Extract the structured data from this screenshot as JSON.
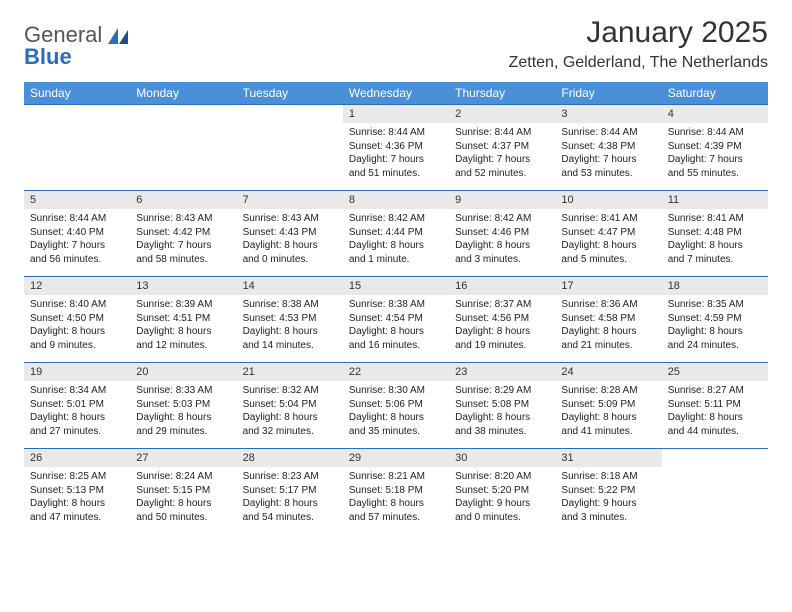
{
  "brand": {
    "line1": "General",
    "line2": "Blue",
    "logo_color": "#2a6fb5"
  },
  "title": "January 2025",
  "location": "Zetten, Gelderland, The Netherlands",
  "colors": {
    "header_bg": "#4a90d9",
    "header_text": "#ffffff",
    "daynum_bg": "#e9e9e9",
    "rule": "#2a6fb5",
    "text": "#222222"
  },
  "day_names": [
    "Sunday",
    "Monday",
    "Tuesday",
    "Wednesday",
    "Thursday",
    "Friday",
    "Saturday"
  ],
  "weeks": [
    [
      null,
      null,
      null,
      {
        "n": "1",
        "sunrise": "8:44 AM",
        "sunset": "4:36 PM",
        "dl1": "Daylight: 7 hours",
        "dl2": "and 51 minutes."
      },
      {
        "n": "2",
        "sunrise": "8:44 AM",
        "sunset": "4:37 PM",
        "dl1": "Daylight: 7 hours",
        "dl2": "and 52 minutes."
      },
      {
        "n": "3",
        "sunrise": "8:44 AM",
        "sunset": "4:38 PM",
        "dl1": "Daylight: 7 hours",
        "dl2": "and 53 minutes."
      },
      {
        "n": "4",
        "sunrise": "8:44 AM",
        "sunset": "4:39 PM",
        "dl1": "Daylight: 7 hours",
        "dl2": "and 55 minutes."
      }
    ],
    [
      {
        "n": "5",
        "sunrise": "8:44 AM",
        "sunset": "4:40 PM",
        "dl1": "Daylight: 7 hours",
        "dl2": "and 56 minutes."
      },
      {
        "n": "6",
        "sunrise": "8:43 AM",
        "sunset": "4:42 PM",
        "dl1": "Daylight: 7 hours",
        "dl2": "and 58 minutes."
      },
      {
        "n": "7",
        "sunrise": "8:43 AM",
        "sunset": "4:43 PM",
        "dl1": "Daylight: 8 hours",
        "dl2": "and 0 minutes."
      },
      {
        "n": "8",
        "sunrise": "8:42 AM",
        "sunset": "4:44 PM",
        "dl1": "Daylight: 8 hours",
        "dl2": "and 1 minute."
      },
      {
        "n": "9",
        "sunrise": "8:42 AM",
        "sunset": "4:46 PM",
        "dl1": "Daylight: 8 hours",
        "dl2": "and 3 minutes."
      },
      {
        "n": "10",
        "sunrise": "8:41 AM",
        "sunset": "4:47 PM",
        "dl1": "Daylight: 8 hours",
        "dl2": "and 5 minutes."
      },
      {
        "n": "11",
        "sunrise": "8:41 AM",
        "sunset": "4:48 PM",
        "dl1": "Daylight: 8 hours",
        "dl2": "and 7 minutes."
      }
    ],
    [
      {
        "n": "12",
        "sunrise": "8:40 AM",
        "sunset": "4:50 PM",
        "dl1": "Daylight: 8 hours",
        "dl2": "and 9 minutes."
      },
      {
        "n": "13",
        "sunrise": "8:39 AM",
        "sunset": "4:51 PM",
        "dl1": "Daylight: 8 hours",
        "dl2": "and 12 minutes."
      },
      {
        "n": "14",
        "sunrise": "8:38 AM",
        "sunset": "4:53 PM",
        "dl1": "Daylight: 8 hours",
        "dl2": "and 14 minutes."
      },
      {
        "n": "15",
        "sunrise": "8:38 AM",
        "sunset": "4:54 PM",
        "dl1": "Daylight: 8 hours",
        "dl2": "and 16 minutes."
      },
      {
        "n": "16",
        "sunrise": "8:37 AM",
        "sunset": "4:56 PM",
        "dl1": "Daylight: 8 hours",
        "dl2": "and 19 minutes."
      },
      {
        "n": "17",
        "sunrise": "8:36 AM",
        "sunset": "4:58 PM",
        "dl1": "Daylight: 8 hours",
        "dl2": "and 21 minutes."
      },
      {
        "n": "18",
        "sunrise": "8:35 AM",
        "sunset": "4:59 PM",
        "dl1": "Daylight: 8 hours",
        "dl2": "and 24 minutes."
      }
    ],
    [
      {
        "n": "19",
        "sunrise": "8:34 AM",
        "sunset": "5:01 PM",
        "dl1": "Daylight: 8 hours",
        "dl2": "and 27 minutes."
      },
      {
        "n": "20",
        "sunrise": "8:33 AM",
        "sunset": "5:03 PM",
        "dl1": "Daylight: 8 hours",
        "dl2": "and 29 minutes."
      },
      {
        "n": "21",
        "sunrise": "8:32 AM",
        "sunset": "5:04 PM",
        "dl1": "Daylight: 8 hours",
        "dl2": "and 32 minutes."
      },
      {
        "n": "22",
        "sunrise": "8:30 AM",
        "sunset": "5:06 PM",
        "dl1": "Daylight: 8 hours",
        "dl2": "and 35 minutes."
      },
      {
        "n": "23",
        "sunrise": "8:29 AM",
        "sunset": "5:08 PM",
        "dl1": "Daylight: 8 hours",
        "dl2": "and 38 minutes."
      },
      {
        "n": "24",
        "sunrise": "8:28 AM",
        "sunset": "5:09 PM",
        "dl1": "Daylight: 8 hours",
        "dl2": "and 41 minutes."
      },
      {
        "n": "25",
        "sunrise": "8:27 AM",
        "sunset": "5:11 PM",
        "dl1": "Daylight: 8 hours",
        "dl2": "and 44 minutes."
      }
    ],
    [
      {
        "n": "26",
        "sunrise": "8:25 AM",
        "sunset": "5:13 PM",
        "dl1": "Daylight: 8 hours",
        "dl2": "and 47 minutes."
      },
      {
        "n": "27",
        "sunrise": "8:24 AM",
        "sunset": "5:15 PM",
        "dl1": "Daylight: 8 hours",
        "dl2": "and 50 minutes."
      },
      {
        "n": "28",
        "sunrise": "8:23 AM",
        "sunset": "5:17 PM",
        "dl1": "Daylight: 8 hours",
        "dl2": "and 54 minutes."
      },
      {
        "n": "29",
        "sunrise": "8:21 AM",
        "sunset": "5:18 PM",
        "dl1": "Daylight: 8 hours",
        "dl2": "and 57 minutes."
      },
      {
        "n": "30",
        "sunrise": "8:20 AM",
        "sunset": "5:20 PM",
        "dl1": "Daylight: 9 hours",
        "dl2": "and 0 minutes."
      },
      {
        "n": "31",
        "sunrise": "8:18 AM",
        "sunset": "5:22 PM",
        "dl1": "Daylight: 9 hours",
        "dl2": "and 3 minutes."
      },
      null
    ]
  ],
  "labels": {
    "sunrise_prefix": "Sunrise: ",
    "sunset_prefix": "Sunset: "
  }
}
